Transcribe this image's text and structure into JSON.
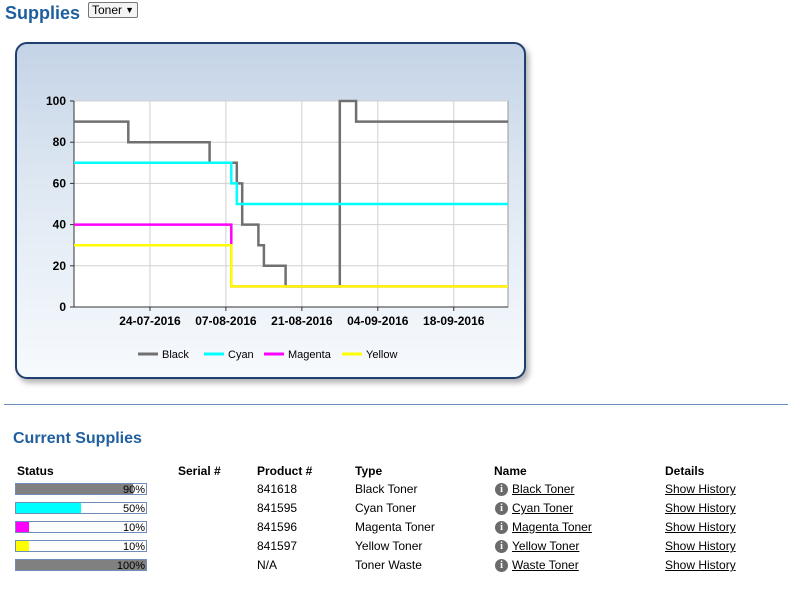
{
  "header": {
    "title": "Supplies",
    "select_value": "Toner"
  },
  "chart_data": {
    "type": "line",
    "xlabel": "",
    "ylabel": "",
    "ylim": [
      0,
      100
    ],
    "xlim": [
      "2016-07-10",
      "2016-09-28"
    ],
    "x_ticks": [
      "24-07-2016",
      "07-08-2016",
      "21-08-2016",
      "04-09-2016",
      "18-09-2016"
    ],
    "y_ticks": [
      "0",
      "20",
      "40",
      "60",
      "80",
      "100"
    ],
    "grid": true,
    "legend_position": "bottom",
    "series": [
      {
        "name": "Black",
        "color": "#707070",
        "step": true,
        "points": [
          [
            "2016-07-10",
            90
          ],
          [
            "2016-07-20",
            90
          ],
          [
            "2016-07-20",
            80
          ],
          [
            "2016-08-04",
            80
          ],
          [
            "2016-08-04",
            70
          ],
          [
            "2016-08-09",
            70
          ],
          [
            "2016-08-09",
            60
          ],
          [
            "2016-08-10",
            60
          ],
          [
            "2016-08-10",
            40
          ],
          [
            "2016-08-13",
            40
          ],
          [
            "2016-08-13",
            30
          ],
          [
            "2016-08-14",
            30
          ],
          [
            "2016-08-14",
            20
          ],
          [
            "2016-08-18",
            20
          ],
          [
            "2016-08-18",
            10
          ],
          [
            "2016-08-28",
            10
          ],
          [
            "2016-08-28",
            100
          ],
          [
            "2016-08-31",
            100
          ],
          [
            "2016-08-31",
            90
          ],
          [
            "2016-09-28",
            90
          ]
        ]
      },
      {
        "name": "Cyan",
        "color": "#00ffff",
        "step": true,
        "points": [
          [
            "2016-07-10",
            70
          ],
          [
            "2016-08-08",
            70
          ],
          [
            "2016-08-08",
            60
          ],
          [
            "2016-08-09",
            60
          ],
          [
            "2016-08-09",
            50
          ],
          [
            "2016-09-28",
            50
          ]
        ]
      },
      {
        "name": "Magenta",
        "color": "#ff00ff",
        "step": true,
        "points": [
          [
            "2016-07-10",
            40
          ],
          [
            "2016-08-08",
            40
          ],
          [
            "2016-08-08",
            10
          ],
          [
            "2016-09-28",
            10
          ]
        ]
      },
      {
        "name": "Yellow",
        "color": "#ffff00",
        "step": true,
        "points": [
          [
            "2016-07-10",
            30
          ],
          [
            "2016-08-08",
            30
          ],
          [
            "2016-08-08",
            10
          ],
          [
            "2016-09-28",
            10
          ]
        ]
      }
    ]
  },
  "current": {
    "title": "Current Supplies",
    "headers": {
      "status": "Status",
      "serial": "Serial #",
      "product": "Product #",
      "type": "Type",
      "name": "Name",
      "details": "Details"
    },
    "rows": [
      {
        "level": 90,
        "pct": "90%",
        "color": "#808080",
        "serial": "",
        "product": "841618",
        "type": "Black Toner",
        "name": "Black Toner",
        "details": "Show History"
      },
      {
        "level": 50,
        "pct": "50%",
        "color": "#00ffff",
        "serial": "",
        "product": "841595",
        "type": "Cyan Toner",
        "name": "Cyan Toner",
        "details": "Show History"
      },
      {
        "level": 10,
        "pct": "10%",
        "color": "#ff00ff",
        "serial": "",
        "product": "841596",
        "type": "Magenta Toner",
        "name": "Magenta Toner",
        "details": "Show History"
      },
      {
        "level": 10,
        "pct": "10%",
        "color": "#ffff00",
        "serial": "",
        "product": "841597",
        "type": "Yellow Toner",
        "name": "Yellow Toner",
        "details": "Show History"
      },
      {
        "level": 100,
        "pct": "100%",
        "color": "#808080",
        "serial": "",
        "product": "N/A",
        "type": "Toner Waste",
        "name": "Waste Toner",
        "details": "Show History"
      }
    ],
    "info_icon": "info-icon"
  }
}
